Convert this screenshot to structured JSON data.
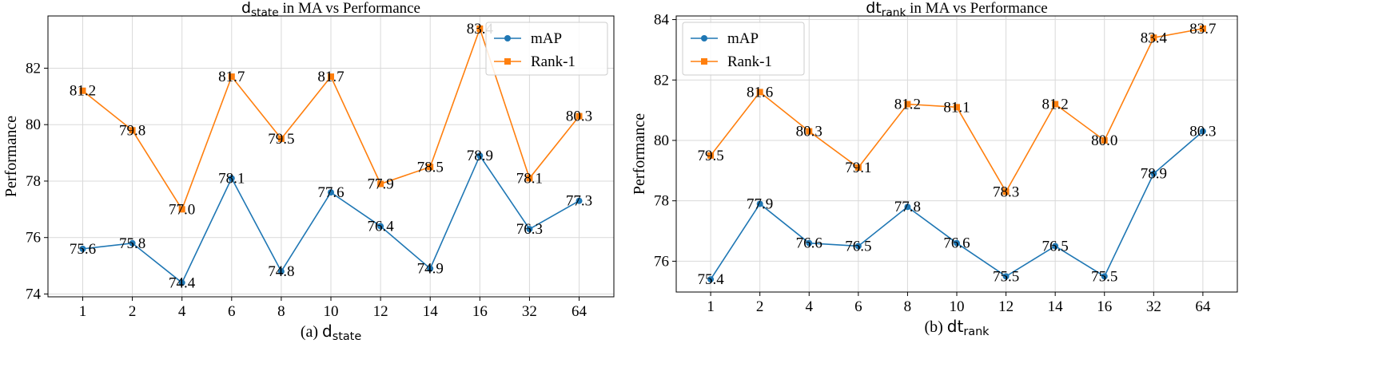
{
  "chart_data": [
    {
      "type": "line",
      "title": {
        "symbol": "d",
        "subscript": "state",
        "rest": " in MA vs Performance"
      },
      "caption": {
        "prefix": "(a) ",
        "symbol": "d",
        "subscript": "state"
      },
      "ylabel": "Performance",
      "categories": [
        "1",
        "2",
        "4",
        "6",
        "8",
        "10",
        "12",
        "14",
        "16",
        "32",
        "64"
      ],
      "yticks": [
        74,
        76,
        78,
        80,
        82
      ],
      "ylim": [
        73.9,
        83.85
      ],
      "grid": true,
      "legend_position": "top-right",
      "series": [
        {
          "name": "mAP",
          "color": "#1f77b4",
          "marker": "circle",
          "values": [
            75.6,
            75.8,
            74.4,
            78.1,
            74.8,
            77.6,
            76.4,
            74.9,
            78.9,
            76.3,
            77.3
          ]
        },
        {
          "name": "Rank-1",
          "color": "#ff7f0e",
          "marker": "square",
          "values": [
            81.2,
            79.8,
            77.0,
            81.7,
            79.5,
            81.7,
            77.9,
            78.5,
            83.4,
            78.1,
            80.3
          ]
        }
      ]
    },
    {
      "type": "line",
      "title": {
        "symbol": "dt",
        "subscript": "rank",
        "rest": " in MA vs Performance"
      },
      "caption": {
        "prefix": "(b) ",
        "symbol": "dt",
        "subscript": "rank"
      },
      "ylabel": "Performance",
      "categories": [
        "1",
        "2",
        "4",
        "6",
        "8",
        "10",
        "12",
        "14",
        "16",
        "32",
        "64"
      ],
      "yticks": [
        76,
        78,
        80,
        82,
        84
      ],
      "ylim": [
        74.98,
        84.12
      ],
      "grid": true,
      "legend_position": "top-left",
      "series": [
        {
          "name": "mAP",
          "color": "#1f77b4",
          "marker": "circle",
          "values": [
            75.4,
            77.9,
            76.6,
            76.5,
            77.8,
            76.6,
            75.5,
            76.5,
            75.5,
            78.9,
            80.3
          ]
        },
        {
          "name": "Rank-1",
          "color": "#ff7f0e",
          "marker": "square",
          "values": [
            79.5,
            81.6,
            80.3,
            79.1,
            81.2,
            81.1,
            78.3,
            81.2,
            80.0,
            83.4,
            83.7
          ]
        }
      ]
    }
  ]
}
